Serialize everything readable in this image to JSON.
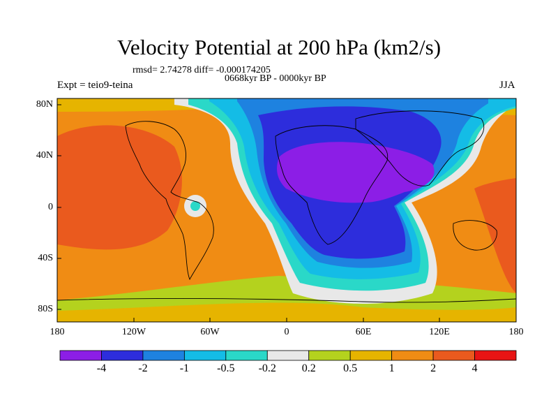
{
  "title": "Velocity Potential at 200 hPa (km2/s)",
  "stats_line": "rmsd= 2.74278 diff= -0.000174205",
  "period_line": "0668kyr BP - 0000kyr BP",
  "experiment": "Expt = teio9-teina",
  "season": "JJA",
  "map": {
    "lat_labels": [
      "80N",
      "40N",
      "0",
      "40S",
      "80S"
    ],
    "lon_labels": [
      "180",
      "120W",
      "60W",
      "0",
      "60E",
      "120E",
      "180"
    ]
  },
  "colorbar": {
    "colors": [
      "#8c1ee6",
      "#2d2ddc",
      "#1e82e0",
      "#14bce6",
      "#2ad8c8",
      "#e8e8e8",
      "#b4d21e",
      "#e6b400",
      "#f08c14",
      "#ea5a1e",
      "#e81414"
    ],
    "labels": [
      "-4",
      "-2",
      "-1",
      "-0.5",
      "-0.2",
      "0.2",
      "0.5",
      "1",
      "2",
      "4"
    ]
  }
}
